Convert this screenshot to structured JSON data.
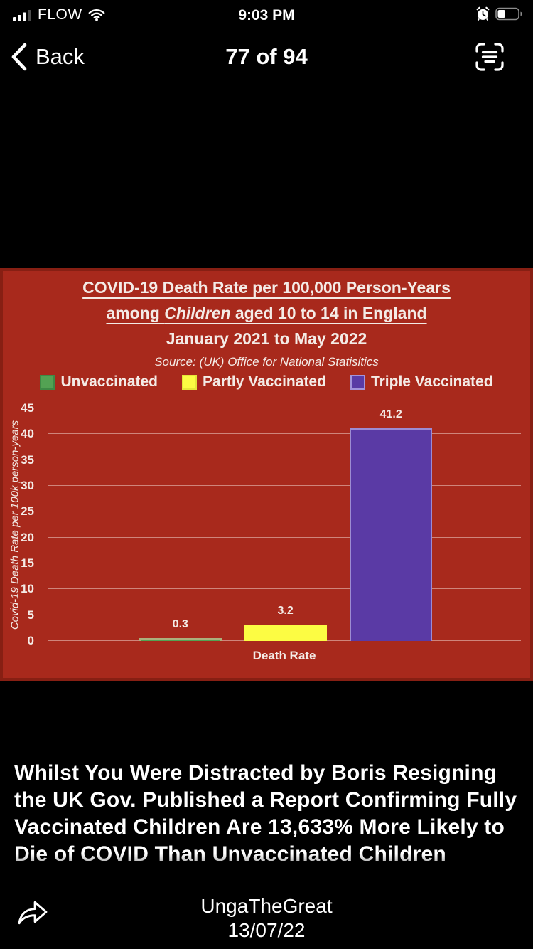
{
  "status_bar": {
    "carrier": "FLOW",
    "time": "9:03 PM",
    "signal_icon": "signal-bars-3-of-4",
    "wifi_icon": "wifi-full",
    "alarm_icon": "alarm-clock",
    "battery_icon": "battery-about-35-percent"
  },
  "nav_bar": {
    "back_label": "Back",
    "position_indicator": "77 of 94",
    "live_text_icon": "live-text"
  },
  "chart_data": {
    "type": "bar",
    "title_lines": {
      "line1": "COVID-19 Death Rate per 100,000 Person-Years",
      "line2_prefix": "among ",
      "line2_italic": "Children",
      "line2_suffix": " aged 10 to 14 in England",
      "line3": "January 2021 to May 2022"
    },
    "source": "Source: (UK) Office for National Statisitics",
    "categories": [
      "Unvaccinated",
      "Partly Vaccinated",
      "Triple Vaccinated"
    ],
    "values": [
      0.3,
      3.2,
      41.2
    ],
    "value_labels": [
      "0.3",
      "3.2",
      "41.2"
    ],
    "colors": [
      "#53A253",
      "#FCFC43",
      "#5A3AA5"
    ],
    "bar_border_colors": [
      "#ABB07C",
      "#FCFC43",
      "#9C8BD2"
    ],
    "legend_swatch_borders": [
      "#3E8A45",
      "#E6E638",
      "#A393DB"
    ],
    "xlabel": "Death Rate",
    "ylabel": "Covid-19 Death Rate per 100k person-years",
    "ylim": [
      0,
      45
    ],
    "ytick_step": 5,
    "grid": true,
    "legend_position": "top",
    "background": "#A8291C",
    "grid_color": "#EFD2CA",
    "text_color": "#F4EBE6"
  },
  "caption": {
    "text": "Whilst You Were Distracted by Boris Resigning the UK Gov. Published a Report Confirming Fully Vaccinated Children Are 13,633% More Likely to Die of COVID Than Unvaccinated Children"
  },
  "footer": {
    "author": "UngaTheGreat",
    "date": "13/07/22",
    "share_icon": "share-forward-arrow"
  }
}
